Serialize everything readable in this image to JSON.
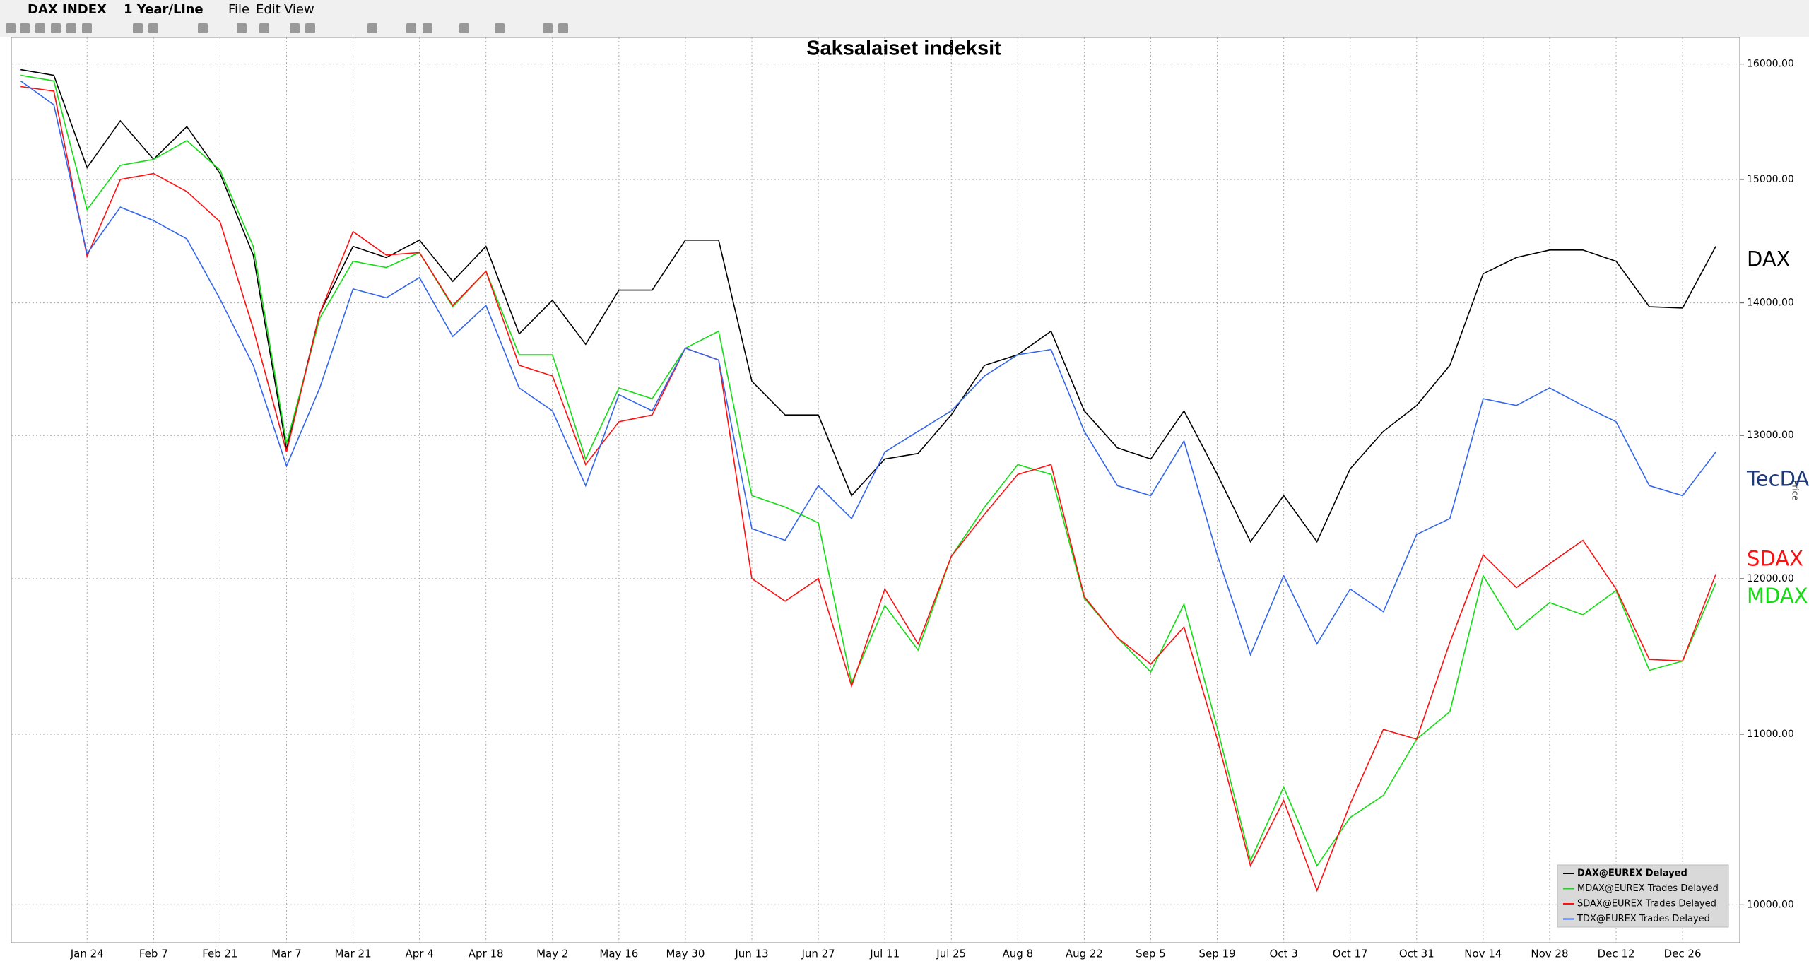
{
  "toolbar": {
    "security": "DAX INDEX",
    "period": "1 Year/Line",
    "menu": [
      "File",
      "Edit",
      "View"
    ]
  },
  "chart_data": {
    "type": "line",
    "title": "Saksalaiset indeksit",
    "y_axis_label": "Price",
    "log_scale": true,
    "grid": true,
    "legend_position": "lower right",
    "categories": [
      null,
      null,
      "Jan 24",
      null,
      "Feb 7",
      null,
      "Feb 21",
      null,
      "Mar 7",
      null,
      "Mar 21",
      null,
      "Apr 4",
      null,
      "Apr 18",
      null,
      "May 2",
      null,
      "May 16",
      null,
      "May 30",
      null,
      "Jun 13",
      null,
      "Jun 27",
      null,
      "Jul 11",
      null,
      "Jul 25",
      null,
      "Aug 8",
      null,
      "Aug 22",
      null,
      "Sep 5",
      null,
      "Sep 19",
      null,
      "Oct 3",
      null,
      "Oct 17",
      null,
      "Oct 31",
      null,
      "Nov 14",
      null,
      "Nov 28",
      null,
      "Dec 12",
      null,
      "Dec 26",
      null
    ],
    "ylim": [
      9790,
      16240
    ],
    "yticks": [
      {
        "value": 10000,
        "label": "10000.00"
      },
      {
        "value": 11000,
        "label": "11000.00"
      },
      {
        "value": 12000,
        "label": "12000.00"
      },
      {
        "value": 13000,
        "label": "13000.00"
      },
      {
        "value": 14000,
        "label": "14000.00"
      },
      {
        "value": 15000,
        "label": "15000.00"
      },
      {
        "value": 16000,
        "label": "16000.00"
      }
    ],
    "series": [
      {
        "name": "DAX@EUREX Delayed",
        "end_label": "DAX",
        "color": "#000000",
        "end_label_color": "#000000",
        "values": [
          15950,
          15900,
          15100,
          15500,
          15170,
          15450,
          15050,
          14380,
          12900,
          13920,
          14450,
          14360,
          14500,
          14170,
          14450,
          13760,
          14020,
          13680,
          14100,
          14100,
          14500,
          14500,
          13400,
          13150,
          13150,
          12570,
          12830,
          12870,
          13150,
          13520,
          13600,
          13780,
          13180,
          12910,
          12830,
          13180,
          12720,
          12250,
          12570,
          12250,
          12760,
          13030,
          13220,
          13520,
          14230,
          14360,
          14420,
          14420,
          14330,
          13970,
          13960,
          14450
        ]
      },
      {
        "name": "MDAX@EUREX Trades Delayed",
        "end_label": "MDAX",
        "color": "#11dd11",
        "end_label_color": "#11dd11",
        "values": [
          15900,
          15850,
          14750,
          15120,
          15170,
          15330,
          15080,
          14450,
          12940,
          13880,
          14330,
          14280,
          14400,
          13970,
          14250,
          13600,
          13600,
          12830,
          13350,
          13270,
          13650,
          13780,
          12570,
          12490,
          12380,
          11320,
          11820,
          11530,
          12150,
          12490,
          12790,
          12720,
          11870,
          11610,
          11390,
          11830,
          11040,
          10250,
          10680,
          10220,
          10500,
          10630,
          10970,
          11140,
          12020,
          11660,
          11840,
          11760,
          11920,
          11400,
          11460,
          11970
        ]
      },
      {
        "name": "SDAX@EUREX Trades Delayed",
        "end_label": "SDAX",
        "color": "#ff1010",
        "end_label_color": "#ff1010",
        "values": [
          15800,
          15760,
          14370,
          15000,
          15050,
          14900,
          14650,
          13800,
          12880,
          13920,
          14570,
          14380,
          14400,
          13980,
          14250,
          13520,
          13440,
          12790,
          13100,
          13150,
          13650,
          13560,
          12000,
          11850,
          12000,
          11300,
          11930,
          11570,
          12150,
          12440,
          12720,
          12790,
          11880,
          11610,
          11440,
          11680,
          10970,
          10220,
          10600,
          10080,
          10580,
          11030,
          10970,
          11580,
          12160,
          11940,
          12100,
          12260,
          11930,
          11470,
          11460,
          12030
        ]
      },
      {
        "name": "TDX@EUREX Trades Delayed",
        "end_label": "TecDAX",
        "color": "#3366ee",
        "end_label_color": "#1f3a7a",
        "values": [
          15850,
          15640,
          14390,
          14770,
          14660,
          14510,
          14030,
          13520,
          12780,
          13350,
          14110,
          14040,
          14200,
          13740,
          13980,
          13350,
          13180,
          12640,
          13300,
          13180,
          13650,
          13560,
          12340,
          12260,
          12640,
          12410,
          12880,
          13030,
          13180,
          13440,
          13600,
          13640,
          13030,
          12640,
          12570,
          12960,
          12160,
          11500,
          12020,
          11570,
          11930,
          11780,
          12300,
          12410,
          13270,
          13220,
          13350,
          13220,
          13100,
          12640,
          12570,
          12880
        ]
      }
    ]
  }
}
